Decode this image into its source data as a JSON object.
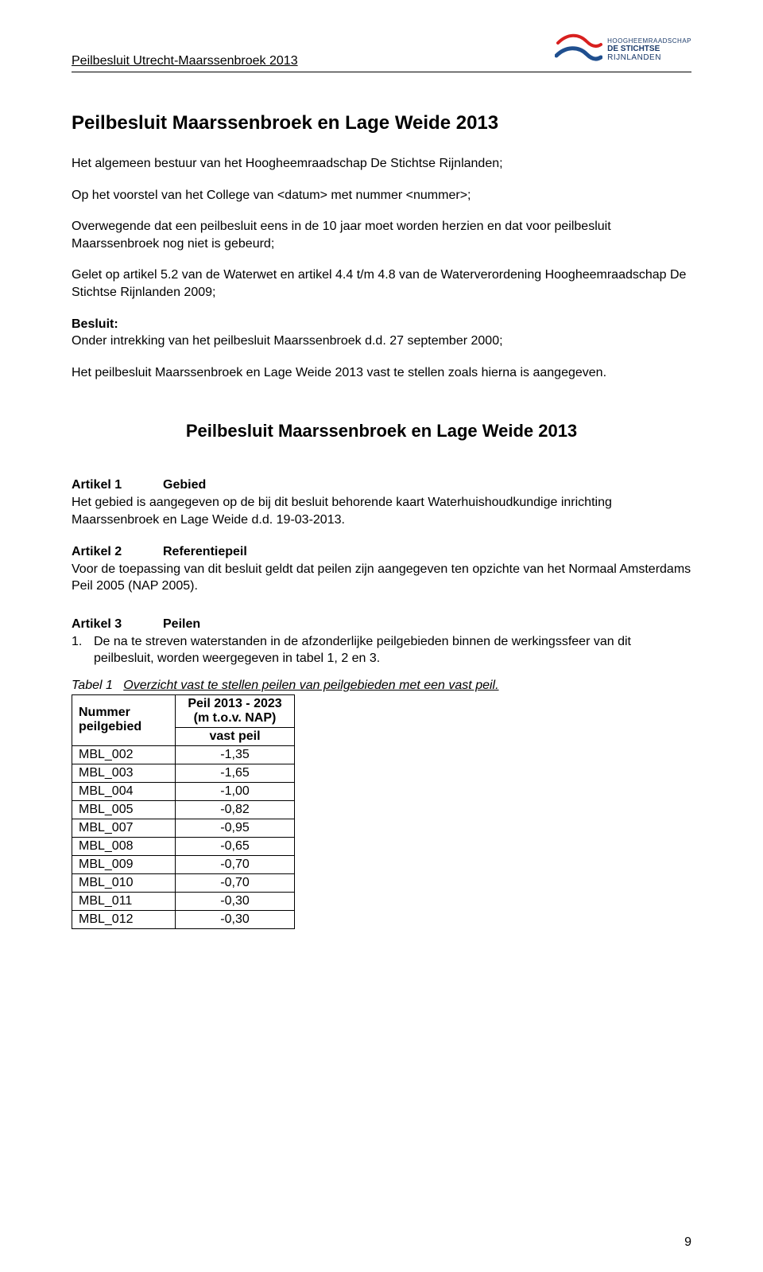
{
  "header": {
    "doc_title": "Peilbesluit Utrecht-Maarssenbroek 2013",
    "logo": {
      "line1": "HOOGHEEMRAADSCHAP",
      "line2": "DE STICHTSE",
      "line3": "RIJNLANDEN",
      "wave_color_1": "#d8201f",
      "wave_color_2": "#1f4f8f"
    }
  },
  "title": "Peilbesluit Maarssenbroek en Lage Weide 2013",
  "intro_p1": "Het algemeen bestuur van het Hoogheemraadschap De Stichtse Rijnlanden;",
  "intro_p2": "Op het voorstel van het College van <datum> met nummer <nummer>;",
  "intro_p3": "Overwegende dat een peilbesluit eens in de 10 jaar moet worden herzien en dat voor peilbesluit Maarssenbroek nog niet is gebeurd;",
  "intro_p4": "Gelet op artikel 5.2 van de Waterwet en artikel 4.4 t/m 4.8 van de Waterverordening Hoogheemraadschap De Stichtse Rijnlanden 2009;",
  "besluit_label": "Besluit:",
  "besluit_line": "Onder intrekking van het peilbesluit Maarssenbroek d.d. 27 september 2000;",
  "besluit_p": "Het peilbesluit Maarssenbroek en Lage Weide 2013 vast te stellen zoals hierna is aangegeven.",
  "section_title": "Peilbesluit Maarssenbroek en Lage Weide 2013",
  "art1": {
    "num": "Artikel 1",
    "name": "Gebied",
    "body": "Het gebied is aangegeven op de bij dit besluit behorende kaart Waterhuishoudkundige inrichting Maarssenbroek en Lage Weide d.d. 19-03-2013."
  },
  "art2": {
    "num": "Artikel 2",
    "name": "Referentiepeil",
    "body": "Voor de toepassing van dit besluit geldt dat peilen zijn aangegeven ten opzichte van het Normaal Amsterdams Peil 2005 (NAP 2005)."
  },
  "art3": {
    "num": "Artikel 3",
    "name": "Peilen",
    "item1": "De na te streven waterstanden in de afzonderlijke peilgebieden binnen de werkingssfeer van dit peilbesluit, worden weergegeven in tabel 1, 2 en 3."
  },
  "tabcaption_label": "Tabel 1",
  "tabcaption_text": "Overzicht vast te stellen peilen van peilgebieden met een vast peil.",
  "table": {
    "h1a": "Nummer",
    "h1b": "peilgebied",
    "h2a": "Peil 2013 - 2023",
    "h2b": "(m t.o.v. NAP)",
    "h2c": "vast peil",
    "rows": [
      {
        "code": "MBL_002",
        "val": "-1,35"
      },
      {
        "code": "MBL_003",
        "val": "-1,65"
      },
      {
        "code": "MBL_004",
        "val": "-1,00"
      },
      {
        "code": "MBL_005",
        "val": "-0,82"
      },
      {
        "code": "MBL_007",
        "val": "-0,95"
      },
      {
        "code": "MBL_008",
        "val": "-0,65"
      },
      {
        "code": "MBL_009",
        "val": "-0,70"
      },
      {
        "code": "MBL_010",
        "val": "-0,70"
      },
      {
        "code": "MBL_011",
        "val": "-0,30"
      },
      {
        "code": "MBL_012",
        "val": "-0,30"
      }
    ]
  },
  "page_number": "9"
}
